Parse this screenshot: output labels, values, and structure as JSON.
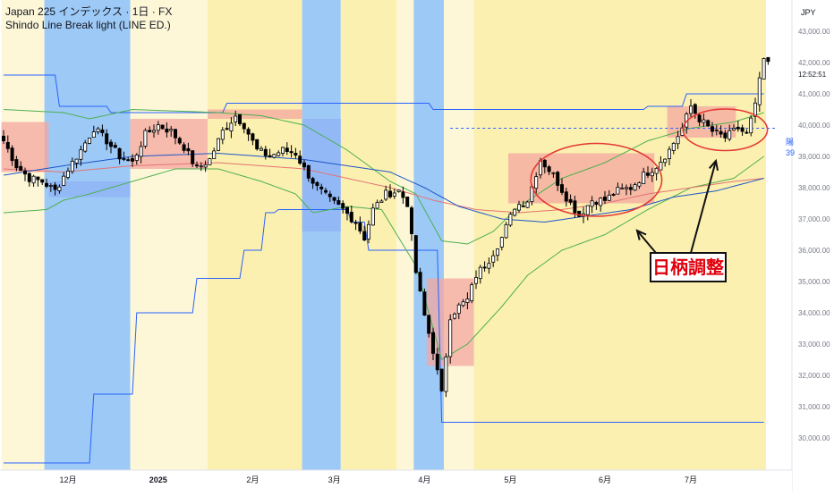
{
  "header": {
    "title": "Japan 225 インデックス · 1日 · FX",
    "indicator": "Shindo Line Break light (LINE ED.)"
  },
  "price_axis": {
    "currency": "JPY",
    "last_price": "42,000.00",
    "countdown": "12:52:51",
    "ticks": [
      "43,000.00",
      "42,000.00",
      "41,000.00",
      "40,000.00",
      "39,000.00",
      "38,000.00",
      "37,000.00",
      "36,000.00",
      "35,000.00",
      "34,000.00",
      "33,000.00",
      "32,000.00",
      "31,000.00",
      "30,000.00"
    ],
    "marker_label_1": "陽",
    "marker_label_2": "39"
  },
  "time_axis": {
    "ticks": [
      "12月",
      "2025",
      "2月",
      "3月",
      "4月",
      "5月",
      "6月",
      "7月"
    ]
  },
  "annotation": {
    "label": "日柄調整"
  },
  "colors": {
    "up": "#ffffff",
    "down": "#000000",
    "zone_yellow": "#fbf0b0",
    "zone_yellow_light": "#fdf7d8",
    "zone_blue": "#8cc0f5",
    "upper_line": "#2962ff",
    "band_green": "#4caf50",
    "ma_red": "#e57373",
    "ma_blue": "#1e56c8",
    "box_red": "#f4a7a0",
    "box_blue": "#8fb1f6",
    "ellipse": "#e53935",
    "annotation_text": "#e0000c"
  },
  "chart_data": {
    "type": "candlestick",
    "title": "Japan 225 インデックス · 1日 · FX",
    "ylim": [
      29200,
      43200
    ],
    "y_ticks": [
      30000,
      31000,
      32000,
      33000,
      34000,
      35000,
      36000,
      37000,
      38000,
      39000,
      40000,
      41000,
      42000,
      43000
    ],
    "x_ticks": [
      {
        "label": "12月",
        "index": 15
      },
      {
        "label": "2025",
        "index": 36
      },
      {
        "label": "2月",
        "index": 58
      },
      {
        "label": "3月",
        "index": 77
      },
      {
        "label": "4月",
        "index": 98
      },
      {
        "label": "5月",
        "index": 118
      },
      {
        "label": "6月",
        "index": 140
      },
      {
        "label": "7月",
        "index": 160
      }
    ],
    "bars": 179,
    "close_anchors": [
      [
        0,
        39500
      ],
      [
        3,
        38700
      ],
      [
        6,
        38300
      ],
      [
        9,
        38200
      ],
      [
        12,
        37900
      ],
      [
        15,
        38600
      ],
      [
        18,
        39200
      ],
      [
        21,
        39900
      ],
      [
        24,
        39500
      ],
      [
        27,
        39000
      ],
      [
        30,
        38800
      ],
      [
        33,
        39700
      ],
      [
        36,
        40000
      ],
      [
        39,
        39800
      ],
      [
        42,
        39300
      ],
      [
        45,
        38600
      ],
      [
        48,
        38900
      ],
      [
        51,
        39800
      ],
      [
        54,
        40300
      ],
      [
        56,
        40000
      ],
      [
        59,
        39200
      ],
      [
        62,
        39000
      ],
      [
        65,
        39200
      ],
      [
        68,
        39100
      ],
      [
        70,
        38600
      ],
      [
        73,
        38000
      ],
      [
        76,
        37600
      ],
      [
        79,
        37300
      ],
      [
        82,
        36900
      ],
      [
        84,
        36400
      ],
      [
        86,
        37300
      ],
      [
        89,
        37800
      ],
      [
        92,
        37900
      ],
      [
        94,
        37500
      ],
      [
        96,
        35300
      ],
      [
        98,
        33900
      ],
      [
        100,
        32800
      ],
      [
        102,
        31400
      ],
      [
        104,
        33900
      ],
      [
        106,
        34200
      ],
      [
        108,
        34400
      ],
      [
        110,
        35200
      ],
      [
        113,
        35700
      ],
      [
        116,
        36400
      ],
      [
        119,
        37400
      ],
      [
        122,
        37600
      ],
      [
        125,
        38900
      ],
      [
        128,
        38400
      ],
      [
        131,
        37700
      ],
      [
        134,
        37100
      ],
      [
        137,
        37600
      ],
      [
        140,
        37600
      ],
      [
        143,
        37900
      ],
      [
        146,
        38000
      ],
      [
        149,
        38400
      ],
      [
        152,
        38700
      ],
      [
        155,
        39200
      ],
      [
        158,
        39900
      ],
      [
        160,
        40600
      ],
      [
        162,
        40200
      ],
      [
        165,
        39800
      ],
      [
        168,
        39600
      ],
      [
        171,
        39900
      ],
      [
        173,
        39700
      ],
      [
        175,
        40600
      ],
      [
        176,
        41500
      ],
      [
        177,
        42000
      ]
    ],
    "series": [
      {
        "name": "upper_line",
        "values": [
          [
            0,
            41600
          ],
          [
            12,
            41600
          ],
          [
            13,
            40600
          ],
          [
            24,
            40600
          ],
          [
            25,
            40400
          ],
          [
            51,
            40400
          ],
          [
            52,
            40700
          ],
          [
            99,
            40700
          ],
          [
            100,
            40500
          ],
          [
            149,
            40500
          ],
          [
            150,
            40600
          ],
          [
            158,
            40600
          ],
          [
            159,
            41000
          ],
          [
            177,
            41000
          ]
        ]
      },
      {
        "name": "lower_line",
        "values": [
          [
            0,
            29200
          ],
          [
            20,
            29200
          ],
          [
            21,
            31400
          ],
          [
            30,
            31400
          ],
          [
            31,
            34000
          ],
          [
            44,
            34000
          ],
          [
            45,
            35100
          ],
          [
            55,
            35100
          ],
          [
            56,
            36000
          ],
          [
            60,
            36000
          ],
          [
            61,
            37200
          ],
          [
            63,
            37200
          ],
          [
            64,
            37300
          ],
          [
            80,
            37300
          ],
          [
            81,
            36900
          ],
          [
            84,
            36900
          ],
          [
            85,
            36000
          ],
          [
            101,
            36000
          ],
          [
            102,
            30500
          ],
          [
            177,
            30500
          ]
        ]
      }
    ],
    "band_upper": [
      [
        0,
        40500
      ],
      [
        14,
        40400
      ],
      [
        20,
        40200
      ],
      [
        30,
        40500
      ],
      [
        50,
        40400
      ],
      [
        60,
        40300
      ],
      [
        70,
        40000
      ],
      [
        80,
        39200
      ],
      [
        90,
        38200
      ],
      [
        96,
        37800
      ],
      [
        102,
        36300
      ],
      [
        108,
        36200
      ],
      [
        114,
        36600
      ],
      [
        120,
        37400
      ],
      [
        130,
        38300
      ],
      [
        140,
        38800
      ],
      [
        150,
        39500
      ],
      [
        160,
        39900
      ],
      [
        170,
        40100
      ],
      [
        177,
        40400
      ]
    ],
    "band_lower": [
      [
        0,
        37200
      ],
      [
        10,
        37300
      ],
      [
        14,
        37600
      ],
      [
        20,
        37800
      ],
      [
        30,
        38200
      ],
      [
        40,
        38600
      ],
      [
        50,
        38600
      ],
      [
        60,
        38200
      ],
      [
        68,
        37800
      ],
      [
        72,
        37200
      ],
      [
        80,
        37400
      ],
      [
        88,
        37300
      ],
      [
        96,
        35500
      ],
      [
        102,
        32500
      ],
      [
        108,
        33000
      ],
      [
        116,
        34200
      ],
      [
        122,
        35200
      ],
      [
        130,
        36000
      ],
      [
        140,
        36500
      ],
      [
        150,
        37300
      ],
      [
        160,
        38000
      ],
      [
        170,
        38300
      ],
      [
        177,
        39000
      ]
    ],
    "ma_red": [
      [
        0,
        38600
      ],
      [
        14,
        38500
      ],
      [
        30,
        38700
      ],
      [
        50,
        38800
      ],
      [
        70,
        38600
      ],
      [
        90,
        38000
      ],
      [
        100,
        37600
      ],
      [
        110,
        37300
      ],
      [
        120,
        37200
      ],
      [
        130,
        37300
      ],
      [
        140,
        37500
      ],
      [
        150,
        37800
      ],
      [
        160,
        38000
      ],
      [
        170,
        38200
      ],
      [
        177,
        38300
      ]
    ],
    "ma_blue": [
      [
        0,
        38400
      ],
      [
        14,
        38700
      ],
      [
        30,
        39000
      ],
      [
        50,
        39100
      ],
      [
        70,
        38900
      ],
      [
        90,
        38500
      ],
      [
        98,
        38000
      ],
      [
        106,
        37400
      ],
      [
        116,
        37000
      ],
      [
        126,
        36900
      ],
      [
        136,
        37100
      ],
      [
        146,
        37300
      ],
      [
        156,
        37700
      ],
      [
        166,
        37900
      ],
      [
        177,
        38300
      ]
    ],
    "zones": [
      {
        "from": 0,
        "to": 10,
        "kind": "yellow_light"
      },
      {
        "from": 10,
        "to": 30,
        "kind": "blue"
      },
      {
        "from": 30,
        "to": 48,
        "kind": "yellow_light"
      },
      {
        "from": 48,
        "to": 70,
        "kind": "yellow"
      },
      {
        "from": 70,
        "to": 79,
        "kind": "blue"
      },
      {
        "from": 79,
        "to": 92,
        "kind": "yellow"
      },
      {
        "from": 92,
        "to": 96,
        "kind": "yellow_light"
      },
      {
        "from": 96,
        "to": 103,
        "kind": "blue"
      },
      {
        "from": 103,
        "to": 110,
        "kind": "yellow_light"
      },
      {
        "from": 110,
        "to": 178,
        "kind": "yellow"
      }
    ],
    "boxes": [
      {
        "from": 0,
        "to": 11,
        "y0": 38500,
        "y1": 40100,
        "kind": "red"
      },
      {
        "from": 11,
        "to": 30,
        "y0": 37700,
        "y1": 38200,
        "kind": "blue"
      },
      {
        "from": 30,
        "to": 48,
        "y0": 38600,
        "y1": 40200,
        "kind": "red"
      },
      {
        "from": 48,
        "to": 70,
        "y0": 40200,
        "y1": 40500,
        "kind": "red"
      },
      {
        "from": 70,
        "to": 79,
        "y0": 36600,
        "y1": 40200,
        "kind": "blue"
      },
      {
        "from": 99,
        "to": 110,
        "y0": 32300,
        "y1": 35100,
        "kind": "red"
      },
      {
        "from": 118,
        "to": 152,
        "y0": 37500,
        "y1": 39100,
        "kind": "red"
      },
      {
        "from": 155,
        "to": 171,
        "y0": 39600,
        "y1": 40600,
        "kind": "red"
      }
    ],
    "dashed_level": 39900
  }
}
